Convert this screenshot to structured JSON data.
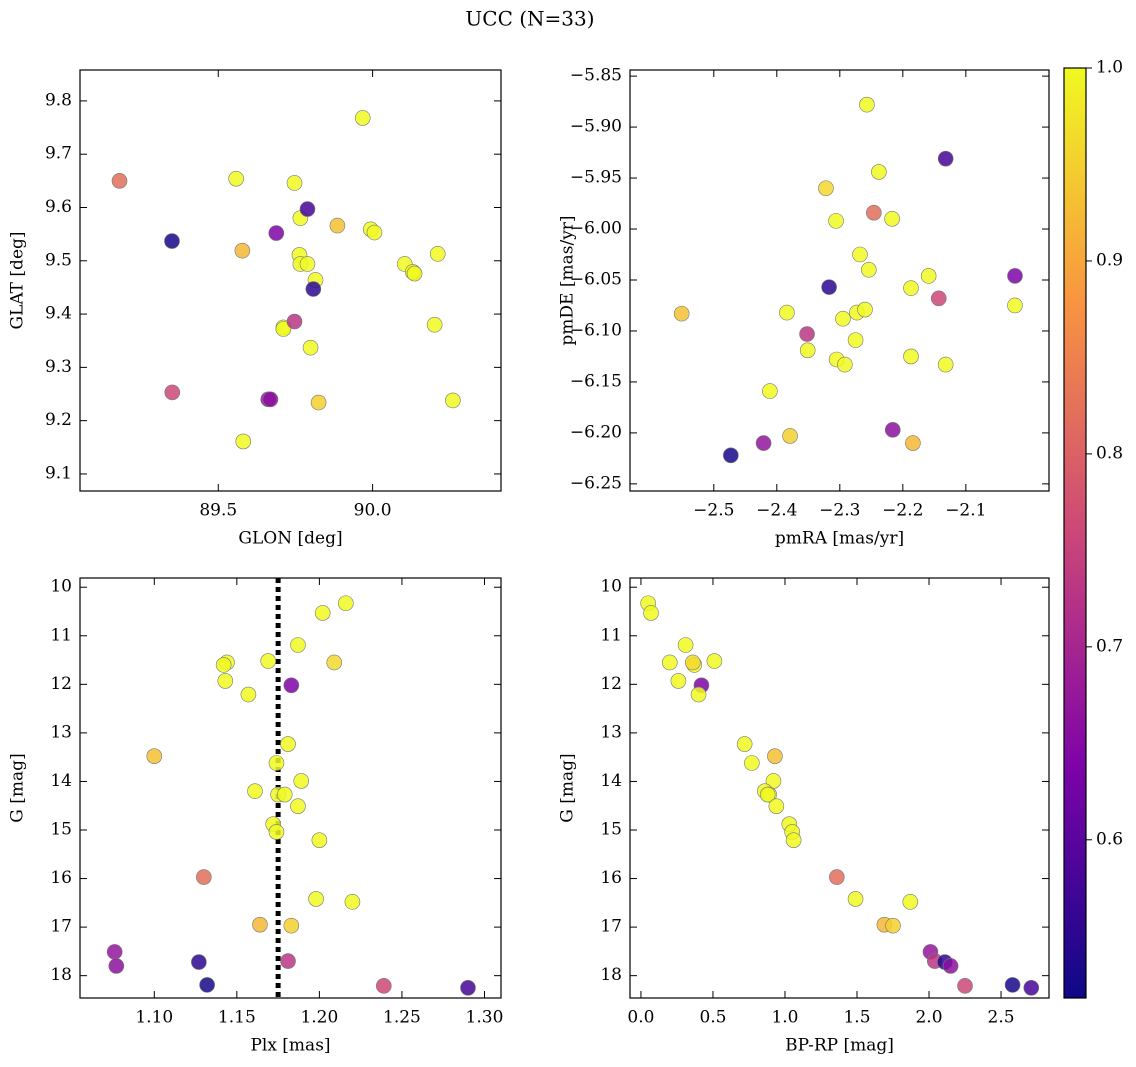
{
  "title": "UCC (N=33)",
  "colorbar": {
    "cmap": "plasma",
    "lim": [
      0.518,
      1.0
    ],
    "ticks": [
      0.6,
      0.7,
      0.8,
      0.9,
      {
        "value": 1.0,
        "label": "1.0"
      }
    ],
    "values": [
      1,
      1,
      1,
      1,
      1,
      1,
      0.96,
      1,
      0.64,
      1,
      1,
      0.93,
      1,
      1,
      1,
      1,
      1,
      1,
      1,
      1,
      1,
      0.82,
      1,
      1,
      0.92,
      0.95,
      0.67,
      0.73,
      0.55,
      0.66,
      0.76,
      0.53,
      0.58
    ]
  },
  "chart_data": [
    {
      "type": "scatter",
      "xlabel": "GLON [deg]",
      "ylabel": "GLAT [deg]",
      "x": [
        89.968,
        89.558,
        89.747,
        89.766,
        89.763,
        89.766,
        90.133,
        89.789,
        89.688,
        89.815,
        89.994,
        89.886,
        90.006,
        90.104,
        90.13,
        90.136,
        90.211,
        90.201,
        90.26,
        89.711,
        89.711,
        89.18,
        89.799,
        89.581,
        89.578,
        89.825,
        89.662,
        89.747,
        89.808,
        89.669,
        89.351,
        89.35,
        89.789
      ],
      "values": [
        9.768,
        9.654,
        9.646,
        9.58,
        9.511,
        9.494,
        9.478,
        9.494,
        9.552,
        9.464,
        9.559,
        9.566,
        9.553,
        9.494,
        9.479,
        9.476,
        9.513,
        9.38,
        9.238,
        9.375,
        9.372,
        9.65,
        9.337,
        9.161,
        9.519,
        9.234,
        9.24,
        9.386,
        9.447,
        9.24,
        9.253,
        9.537,
        9.597
      ],
      "xlim": [
        89.052,
        90.416
      ],
      "ylim": [
        9.068,
        9.858
      ],
      "xticks": [
        89.5,
        {
          "value": 90.0,
          "label": "90.0"
        }
      ],
      "yticks": [
        9.1,
        9.2,
        9.3,
        9.4,
        9.5,
        9.6,
        9.7,
        9.8
      ]
    },
    {
      "type": "scatter",
      "xlabel": "pmRA [mas/yr]",
      "ylabel": "pmDE [mas/yr]",
      "x": [
        -2.411,
        -2.384,
        -2.351,
        -2.306,
        -2.295,
        -2.305,
        -2.322,
        -2.292,
        -2.022,
        -2.275,
        -2.273,
        -2.551,
        -2.26,
        -2.268,
        -2.254,
        -2.257,
        -2.238,
        -2.217,
        -2.187,
        -2.187,
        -2.159,
        -2.246,
        -2.132,
        -2.022,
        -2.184,
        -2.379,
        -2.421,
        -2.352,
        -2.317,
        -2.216,
        -2.143,
        -2.473,
        -2.132
      ],
      "values": [
        -6.159,
        -6.082,
        -6.119,
        -5.992,
        -6.088,
        -6.128,
        -5.96,
        -6.133,
        -6.046,
        -6.109,
        -6.082,
        -6.083,
        -6.079,
        -6.025,
        -6.04,
        -5.878,
        -5.944,
        -5.99,
        -6.058,
        -6.125,
        -6.046,
        -5.984,
        -6.133,
        -6.075,
        -6.21,
        -6.203,
        -6.21,
        -6.103,
        -6.057,
        -6.197,
        -6.068,
        -6.222,
        -5.931
      ],
      "xlim": [
        -2.633,
        -1.968
      ],
      "ylim": [
        -6.257,
        -5.844
      ],
      "xticks": [
        {
          "value": -2.5,
          "label": "−2.5"
        },
        {
          "value": -2.4,
          "label": "−2.4"
        },
        {
          "value": -2.3,
          "label": "−2.3"
        },
        {
          "value": -2.2,
          "label": "−2.2"
        },
        {
          "value": -2.1,
          "label": "−2.1"
        }
      ],
      "yticks": [
        {
          "value": -6.25,
          "label": "−6.25"
        },
        {
          "value": -6.2,
          "label": "−6.20"
        },
        {
          "value": -6.15,
          "label": "−6.15"
        },
        {
          "value": -6.1,
          "label": "−6.10"
        },
        {
          "value": -6.05,
          "label": "−6.05"
        },
        {
          "value": -6.0,
          "label": "−6.00"
        },
        {
          "value": -5.95,
          "label": "−5.95"
        },
        {
          "value": -5.9,
          "label": "−5.90"
        },
        {
          "value": -5.85,
          "label": "−5.85"
        }
      ]
    },
    {
      "type": "scatter",
      "xlabel": "Plx [mas]",
      "ylabel": "G [mag]",
      "x": [
        1.216,
        1.202,
        1.187,
        1.144,
        1.142,
        1.169,
        1.209,
        1.143,
        1.183,
        1.157,
        1.181,
        1.1,
        1.174,
        1.189,
        1.161,
        1.175,
        1.179,
        1.187,
        1.172,
        1.174,
        1.2,
        1.13,
        1.198,
        1.22,
        1.164,
        1.183,
        1.076,
        1.181,
        1.127,
        1.077,
        1.239,
        1.132,
        1.29
      ],
      "values": [
        10.33,
        10.53,
        11.19,
        11.55,
        11.6,
        11.52,
        11.55,
        11.93,
        12.02,
        12.21,
        13.23,
        13.48,
        13.62,
        13.99,
        14.2,
        14.27,
        14.27,
        14.51,
        14.88,
        15.04,
        15.21,
        15.97,
        16.42,
        16.48,
        16.95,
        16.97,
        17.51,
        17.7,
        17.72,
        17.8,
        18.21,
        18.19,
        18.25
      ],
      "xlim": [
        1.055,
        1.31
      ],
      "ylim": [
        18.46,
        9.81
      ],
      "xticks": [
        {
          "value": 1.1,
          "label": "1.10"
        },
        1.15,
        {
          "value": 1.2,
          "label": "1.20"
        },
        1.25,
        {
          "value": 1.3,
          "label": "1.30"
        }
      ],
      "yticks": [
        10,
        11,
        12,
        13,
        14,
        15,
        16,
        17,
        18
      ],
      "vline": 1.175
    },
    {
      "type": "scatter",
      "xlabel": "BP-RP [mag]",
      "ylabel": "G [mag]",
      "x": [
        0.05,
        0.07,
        0.31,
        0.2,
        0.37,
        0.51,
        0.36,
        0.26,
        0.42,
        0.4,
        0.72,
        0.93,
        0.77,
        0.92,
        0.86,
        0.89,
        0.88,
        0.94,
        1.03,
        1.05,
        1.06,
        1.36,
        1.49,
        1.87,
        1.69,
        1.75,
        2.01,
        2.04,
        2.11,
        2.15,
        2.25,
        2.58,
        2.71
      ],
      "values": [
        10.33,
        10.53,
        11.19,
        11.55,
        11.6,
        11.52,
        11.55,
        11.93,
        12.02,
        12.21,
        13.23,
        13.48,
        13.62,
        13.99,
        14.2,
        14.27,
        14.27,
        14.51,
        14.88,
        15.04,
        15.21,
        15.97,
        16.42,
        16.48,
        16.95,
        16.97,
        17.51,
        17.7,
        17.72,
        17.8,
        18.21,
        18.19,
        18.25
      ],
      "xlim": [
        -0.076,
        2.833
      ],
      "ylim": [
        18.46,
        9.81
      ],
      "xticks": [
        {
          "value": 0.0,
          "label": "0.0"
        },
        0.5,
        {
          "value": 1.0,
          "label": "1.0"
        },
        1.5,
        {
          "value": 2.0,
          "label": "2.0"
        },
        2.5
      ],
      "yticks": [
        10,
        11,
        12,
        13,
        14,
        15,
        16,
        17,
        18
      ]
    }
  ]
}
